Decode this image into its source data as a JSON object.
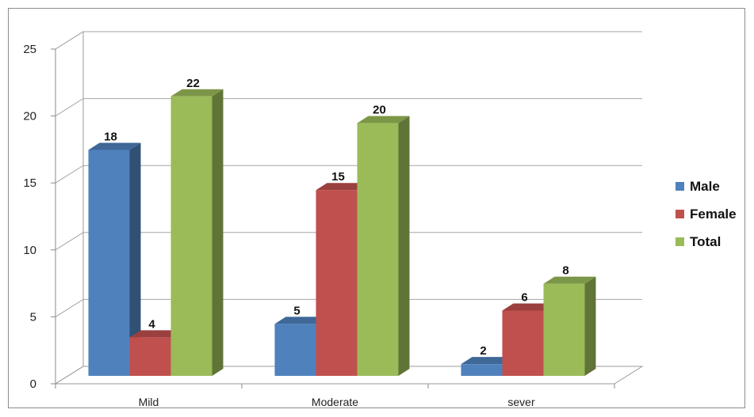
{
  "chart_data": {
    "type": "bar",
    "categories": [
      "Mild",
      "Moderate",
      "sever"
    ],
    "series": [
      {
        "name": "Male",
        "values": [
          18,
          5,
          2
        ],
        "color": "#4f81bd"
      },
      {
        "name": "Female",
        "values": [
          4,
          15,
          6
        ],
        "color": "#c0504d"
      },
      {
        "name": "Total",
        "values": [
          22,
          20,
          8
        ],
        "color": "#9bbb59"
      }
    ],
    "ylim": [
      0,
      25
    ],
    "yticks": [
      0,
      5,
      10,
      15,
      20,
      25
    ],
    "grid": true,
    "legend": "right",
    "style": "3d-clustered-column"
  }
}
